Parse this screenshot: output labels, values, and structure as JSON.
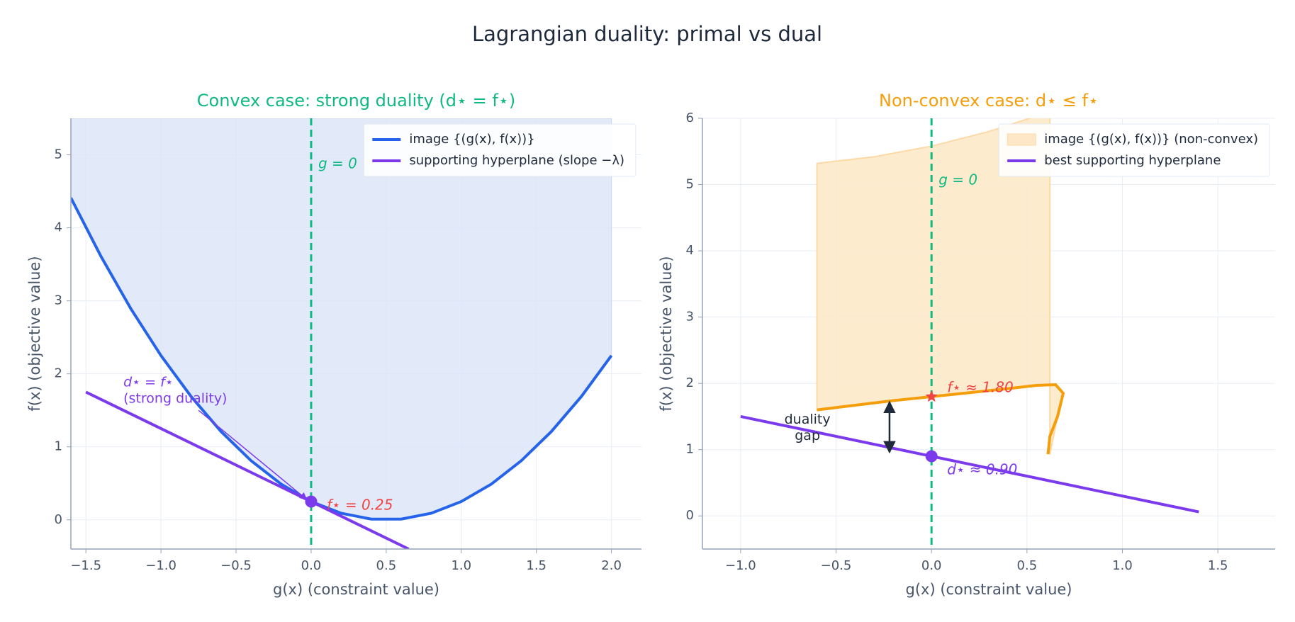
{
  "title": "Lagrangian duality: primal vs dual",
  "chart_data": [
    {
      "type": "line",
      "title": "Convex case: strong duality (d⋆ = f⋆)",
      "title_color": "#10b981",
      "xlabel": "g(x)  (constraint value)",
      "ylabel": "f(x)  (objective value)",
      "xlim": [
        -1.6,
        2.2
      ],
      "ylim": [
        -0.4,
        5.5
      ],
      "xticks": [
        {
          "value": -1.5,
          "label": "−1.5"
        },
        {
          "value": -1,
          "label": "−1.0"
        },
        {
          "value": -0.5,
          "label": "−0.5"
        },
        {
          "value": 0,
          "label": "0.0"
        },
        {
          "value": 0.5,
          "label": "0.5"
        },
        {
          "value": 1,
          "label": "1.0"
        },
        {
          "value": 1.5,
          "label": "1.5"
        },
        {
          "value": 2,
          "label": "2.0"
        }
      ],
      "yticks": [
        0,
        1,
        2,
        3,
        4,
        5
      ],
      "grid": true,
      "legend": "upper right",
      "series": [
        {
          "name": "image {(g(x), f(x))}",
          "color": "#2563eb",
          "kind": "area_above",
          "fill": "#dbe5f8",
          "x": [
            -1.6,
            -1.4,
            -1.2,
            -1.0,
            -0.8,
            -0.6,
            -0.4,
            -0.2,
            0,
            0.2,
            0.4,
            0.6,
            0.8,
            1.0,
            1.2,
            1.4,
            1.6,
            1.8,
            2.0
          ],
          "values": [
            4.41,
            3.61,
            2.89,
            2.25,
            1.69,
            1.21,
            0.81,
            0.49,
            0.25,
            0.09,
            0.01,
            0.01,
            0.09,
            0.25,
            0.49,
            0.81,
            1.21,
            1.69,
            2.25
          ]
        },
        {
          "name": "supporting hyperplane (slope −λ)",
          "color": "#7c3aed",
          "kind": "line",
          "x": [
            -1.5,
            0.65
          ],
          "values": [
            1.75,
            -0.4
          ]
        }
      ],
      "vline": {
        "x": 0,
        "label": "g = 0",
        "color": "#10b981"
      },
      "points": [
        {
          "x": 0,
          "y": 0.25,
          "marker": "circle",
          "color": "#7c3aed",
          "label": "f⋆ = 0.25",
          "label_color": "#ef4444"
        }
      ],
      "annotation": {
        "text": [
          "d⋆ = f⋆",
          "(strong duality)"
        ],
        "color": "#7c3aed"
      }
    },
    {
      "type": "line",
      "title": "Non-convex case: d⋆ ≤ f⋆",
      "title_color": "#f59e0b",
      "xlabel": "g(x)  (constraint value)",
      "ylabel": "f(x)  (objective value)",
      "xlim": [
        -1.2,
        1.8
      ],
      "ylim": [
        -0.5,
        6
      ],
      "xticks": [
        {
          "value": -1,
          "label": "−1.0"
        },
        {
          "value": -0.5,
          "label": "−0.5"
        },
        {
          "value": 0,
          "label": "0.0"
        },
        {
          "value": 0.5,
          "label": "0.5"
        },
        {
          "value": 1,
          "label": "1.0"
        },
        {
          "value": 1.5,
          "label": "1.5"
        }
      ],
      "yticks": [
        0,
        1,
        2,
        3,
        4,
        5,
        6
      ],
      "grid": true,
      "legend": "upper right",
      "series": [
        {
          "name": "image {(g(x), f(x))} (non-convex)",
          "color": "#fde7c6",
          "kind": "region",
          "x": [
            -0.6,
            -0.6,
            -0.3,
            0,
            0.3,
            0.62,
            0.62,
            0.62,
            0.66,
            0.69,
            0.65,
            0.55,
            0.4,
            0.2,
            0,
            -0.2,
            -0.4
          ],
          "values": [
            1.6,
            5.32,
            5.42,
            5.58,
            5.8,
            6.1,
            4.9,
            0.93,
            1.5,
            1.85,
            1.98,
            1.97,
            1.92,
            1.86,
            1.8,
            1.74,
            1.67
          ]
        },
        {
          "color": "#f59e0b",
          "kind": "line",
          "x": [
            -0.6,
            -0.4,
            -0.2,
            0,
            0.2,
            0.4,
            0.55,
            0.65,
            0.69,
            0.66,
            0.62,
            0.61
          ],
          "values": [
            1.6,
            1.67,
            1.74,
            1.8,
            1.86,
            1.92,
            1.97,
            1.98,
            1.85,
            1.5,
            1.2,
            0.93
          ]
        },
        {
          "name": "best supporting hyperplane",
          "color": "#7c3aed",
          "kind": "line",
          "x": [
            -1.0,
            1.4
          ],
          "values": [
            1.5,
            0.06
          ]
        }
      ],
      "vline": {
        "x": 0,
        "label": "g = 0",
        "color": "#10b981"
      },
      "points": [
        {
          "x": 0,
          "y": 1.8,
          "marker": "star",
          "color": "#ef4444",
          "label": "f⋆ ≈ 1.80",
          "label_color": "#ef4444"
        },
        {
          "x": 0,
          "y": 0.9,
          "marker": "circle",
          "color": "#7c3aed",
          "label": "d⋆ ≈ 0.90",
          "label_color": "#7c3aed"
        }
      ],
      "annotation": {
        "text": [
          "duality",
          "gap"
        ],
        "color": "#1e293b"
      }
    }
  ]
}
